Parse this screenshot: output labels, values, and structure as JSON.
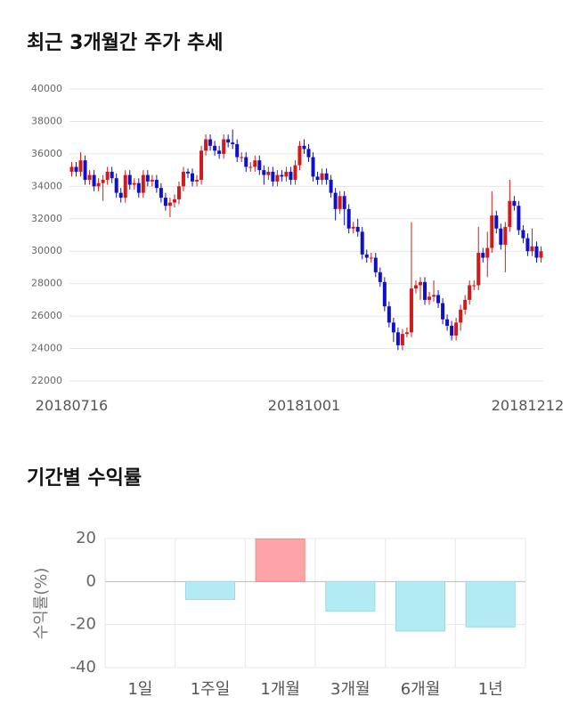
{
  "chart_data": [
    {
      "type": "candlestick",
      "title": "최근 3개월간 주가 추세",
      "categories": [
        "20180716",
        null,
        null,
        null,
        null,
        null,
        null,
        null,
        null,
        null,
        null,
        null,
        null,
        null,
        null,
        null,
        null,
        null,
        null,
        null,
        null,
        null,
        null,
        null,
        null,
        null,
        null,
        null,
        null,
        null,
        null,
        null,
        null,
        null,
        null,
        null,
        null,
        null,
        null,
        null,
        null,
        null,
        null,
        null,
        null,
        null,
        null,
        null,
        null,
        null,
        null,
        null,
        "20181001",
        null,
        null,
        null,
        null,
        null,
        null,
        null,
        null,
        null,
        null,
        null,
        null,
        null,
        null,
        null,
        null,
        null,
        null,
        null,
        null,
        null,
        null,
        null,
        null,
        null,
        null,
        null,
        null,
        null,
        null,
        null,
        null,
        null,
        null,
        null,
        null,
        null,
        null,
        null,
        null,
        null,
        null,
        null,
        null,
        null,
        null,
        null,
        null,
        null,
        "20181212",
        null,
        null,
        null
      ],
      "open": [
        34900,
        35200,
        34900,
        35600,
        34400,
        34700,
        34000,
        34200,
        34400,
        34900,
        34500,
        33600,
        33300,
        34700,
        34100,
        34200,
        33600,
        34700,
        34300,
        34400,
        33900,
        33300,
        32800,
        33000,
        33200,
        34000,
        34900,
        34800,
        34300,
        34400,
        36200,
        36900,
        36500,
        36200,
        36000,
        36900,
        36700,
        36600,
        35800,
        35800,
        35200,
        35200,
        35600,
        35000,
        34700,
        34900,
        34300,
        34700,
        34600,
        34900,
        34400,
        35300,
        36500,
        36300,
        35800,
        34600,
        34400,
        34800,
        34400,
        33600,
        32600,
        33400,
        32600,
        31400,
        31500,
        31200,
        29800,
        29600,
        29600,
        28700,
        28100,
        26600,
        25600,
        25000,
        24200,
        24900,
        25000,
        27700,
        27900,
        28100,
        27000,
        27200,
        27300,
        26800,
        25800,
        25400,
        24800,
        25600,
        26400,
        27000,
        27900,
        27900,
        29900,
        29600,
        30200,
        32200,
        31400,
        30400,
        31500,
        33100,
        32800,
        31300,
        30800,
        30000,
        30300,
        29600
      ],
      "high": [
        35500,
        35500,
        36100,
        35900,
        35000,
        35000,
        34500,
        34700,
        35200,
        35200,
        34800,
        33900,
        35000,
        35000,
        34500,
        34500,
        35000,
        35000,
        34700,
        34700,
        34200,
        33600,
        33300,
        33500,
        34300,
        35200,
        35100,
        35100,
        34700,
        36500,
        37200,
        37200,
        36800,
        36500,
        37200,
        37200,
        37500,
        36900,
        36100,
        36100,
        35500,
        35900,
        35900,
        35300,
        35200,
        35200,
        35000,
        35000,
        35200,
        35200,
        35600,
        36800,
        36900,
        36600,
        36100,
        34900,
        35100,
        35100,
        34700,
        33900,
        33700,
        33700,
        32900,
        31800,
        32000,
        31500,
        30100,
        29900,
        29900,
        29000,
        28400,
        26900,
        25900,
        25300,
        25200,
        25300,
        31800,
        28200,
        28400,
        28400,
        27500,
        28200,
        27600,
        27100,
        26100,
        25700,
        25900,
        26700,
        27300,
        28200,
        28200,
        31500,
        30200,
        31200,
        33700,
        32500,
        31700,
        31800,
        34400,
        33400,
        33100,
        31600,
        31100,
        31400,
        30600,
        30300
      ],
      "low": [
        34600,
        34600,
        34600,
        34100,
        34100,
        33700,
        33700,
        33100,
        34100,
        34200,
        33300,
        33000,
        33000,
        33800,
        33800,
        33300,
        33300,
        34000,
        34000,
        33600,
        33000,
        32500,
        32100,
        32700,
        32900,
        33700,
        34500,
        34000,
        34000,
        34100,
        35900,
        36200,
        35900,
        35700,
        35700,
        36400,
        36300,
        35500,
        35500,
        34900,
        34900,
        34900,
        34700,
        34100,
        34400,
        34000,
        34000,
        34300,
        34300,
        34100,
        34100,
        35000,
        36000,
        35500,
        34300,
        34100,
        34100,
        34100,
        33300,
        31900,
        32300,
        31600,
        31100,
        31100,
        30900,
        29500,
        29300,
        29300,
        28400,
        27800,
        26300,
        25300,
        24400,
        23900,
        23900,
        24700,
        24700,
        27400,
        27000,
        26700,
        26700,
        26900,
        26500,
        25500,
        25100,
        24500,
        24500,
        25100,
        26100,
        26700,
        27600,
        27600,
        29300,
        28400,
        29900,
        31100,
        30100,
        28700,
        31200,
        32500,
        31000,
        30500,
        29700,
        29700,
        29300,
        29300
      ],
      "close": [
        35200,
        34900,
        35600,
        34400,
        34700,
        34000,
        34200,
        34400,
        34900,
        34500,
        33600,
        33300,
        34700,
        34100,
        34200,
        33600,
        34700,
        34300,
        34400,
        33900,
        33300,
        32800,
        33000,
        33200,
        34000,
        34900,
        34800,
        34300,
        34400,
        36200,
        36900,
        36500,
        36200,
        36000,
        36900,
        36700,
        36600,
        35800,
        35800,
        35200,
        35200,
        35600,
        35000,
        34700,
        34900,
        34300,
        34700,
        34600,
        34900,
        34400,
        35300,
        36500,
        36300,
        35800,
        34600,
        34400,
        34800,
        34400,
        33600,
        32600,
        33400,
        32600,
        31400,
        31500,
        31200,
        29800,
        29600,
        29600,
        28700,
        28100,
        26600,
        25600,
        25000,
        24200,
        24900,
        25000,
        27700,
        27900,
        28100,
        27000,
        27200,
        27300,
        26800,
        25800,
        25400,
        24800,
        25600,
        26400,
        27000,
        27900,
        27900,
        29900,
        29600,
        30200,
        32200,
        31400,
        30400,
        31500,
        33100,
        32800,
        31300,
        30800,
        30000,
        30300,
        29600,
        30000
      ],
      "up_color": "#d21a1a",
      "down_color": "#1010c8",
      "ylim": [
        22000,
        40000
      ],
      "yticks": [
        22000,
        24000,
        26000,
        28000,
        30000,
        32000,
        34000,
        36000,
        38000,
        40000
      ],
      "grid": true
    },
    {
      "type": "bar",
      "title": "기간별 수익률",
      "ylabel": "수익률(%)",
      "categories": [
        "1일",
        "1주일",
        "1개월",
        "3개월",
        "6개월",
        "1년"
      ],
      "values": [
        0,
        -8.3,
        19.8,
        -13.8,
        -23,
        -21.1
      ],
      "positive_color": "#ffa4a6",
      "negative_color": "#b3ebf3",
      "ylim": [
        -40,
        20
      ],
      "yticks": [
        -40,
        -20,
        0,
        20
      ],
      "grid": true
    }
  ]
}
